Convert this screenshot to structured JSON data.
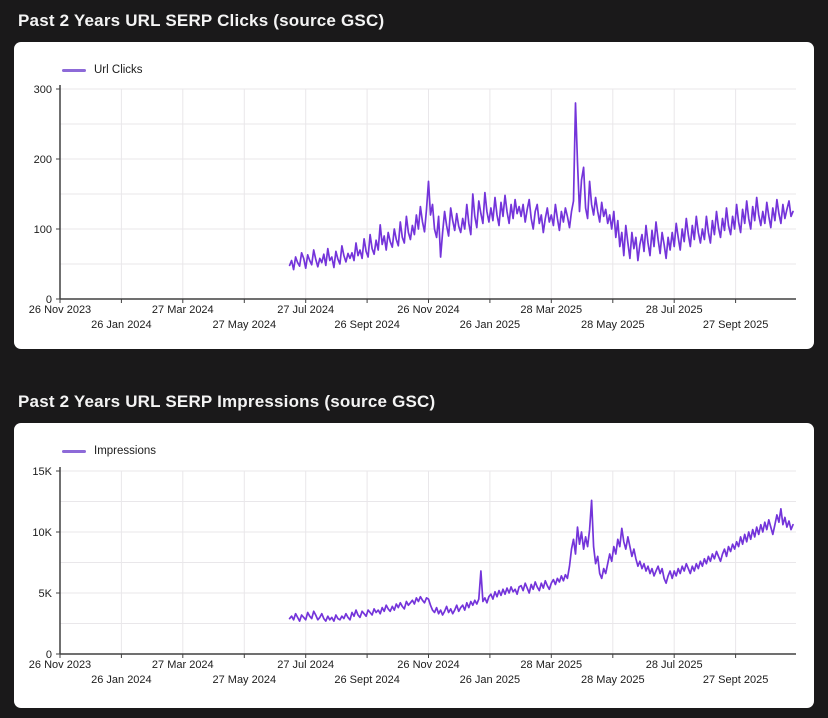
{
  "page": {
    "background": "#1a191a",
    "card_background": "#ffffff",
    "title_color": "#f4f4f4"
  },
  "chart_data": [
    {
      "type": "line",
      "title": "Past 2 Years URL SERP Clicks (source GSC)",
      "legend": "Url Clicks",
      "line_color": "#7434da",
      "legend_color": "#8d6ad8",
      "grid_color": "#e9e7ea",
      "axis_color": "#414141",
      "label_color": "#1c1c1c",
      "xlim": [
        0,
        731
      ],
      "ylim": [
        0,
        300
      ],
      "legend_position": "top-left",
      "grid": true,
      "y_gridlines": [
        50,
        100,
        150,
        200,
        250,
        300
      ],
      "y_ticks": [
        {
          "v": 0,
          "label": "0"
        },
        {
          "v": 100,
          "label": "100"
        },
        {
          "v": 200,
          "label": "200"
        },
        {
          "v": 300,
          "label": "300"
        }
      ],
      "x_ticks": [
        {
          "v": 0,
          "label": "26 Nov 2023",
          "row": 1
        },
        {
          "v": 61,
          "label": "26 Jan 2024",
          "row": 2
        },
        {
          "v": 122,
          "label": "27 Mar 2024",
          "row": 1
        },
        {
          "v": 183,
          "label": "27 May 2024",
          "row": 2
        },
        {
          "v": 244,
          "label": "27 Jul 2024",
          "row": 1
        },
        {
          "v": 305,
          "label": "26 Sept 2024",
          "row": 2
        },
        {
          "v": 366,
          "label": "26 Nov 2024",
          "row": 1
        },
        {
          "v": 427,
          "label": "26 Jan 2025",
          "row": 2
        },
        {
          "v": 488,
          "label": "28 Mar 2025",
          "row": 1
        },
        {
          "v": 549,
          "label": "28 May 2025",
          "row": 2
        },
        {
          "v": 610,
          "label": "28 Jul 2025",
          "row": 1
        },
        {
          "v": 671,
          "label": "27 Sept 2025",
          "row": 2
        }
      ],
      "series": [
        {
          "name": "Url Clicks",
          "x_start": 228,
          "x_step": 2,
          "values": [
            48,
            55,
            42,
            60,
            52,
            47,
            66,
            58,
            44,
            63,
            55,
            49,
            70,
            57,
            46,
            58,
            52,
            64,
            48,
            72,
            55,
            60,
            45,
            68,
            57,
            50,
            76,
            62,
            53,
            65,
            58,
            66,
            55,
            80,
            62,
            70,
            58,
            86,
            68,
            60,
            92,
            72,
            64,
            84,
            70,
            106,
            78,
            90,
            70,
            95,
            82,
            74,
            100,
            85,
            76,
            110,
            88,
            80,
            118,
            95,
            85,
            105,
            92,
            120,
            100,
            132,
            110,
            96,
            128,
            168,
            120,
            135,
            100,
            88,
            118,
            60,
            95,
            125,
            105,
            90,
            130,
            112,
            98,
            122,
            104,
            95,
            115,
            100,
            135,
            108,
            92,
            150,
            118,
            102,
            140,
            122,
            108,
            152,
            125,
            110,
            130,
            112,
            145,
            120,
            105,
            138,
            118,
            148,
            125,
            108,
            135,
            115,
            142,
            122,
            132,
            118,
            135,
            110,
            128,
            142,
            115,
            100,
            125,
            135,
            108,
            120,
            95,
            115,
            130,
            110,
            120,
            105,
            135,
            115,
            98,
            125,
            110,
            130,
            118,
            102,
            125,
            140,
            280,
            195,
            125,
            170,
            188,
            130,
            115,
            168,
            135,
            120,
            145,
            125,
            110,
            138,
            118,
            128,
            108,
            120,
            100,
            125,
            88,
            112,
            75,
            95,
            62,
            105,
            80,
            58,
            95,
            72,
            88,
            55,
            78,
            92,
            68,
            105,
            80,
            62,
            98,
            75,
            110,
            85,
            65,
            95,
            78,
            58,
            88,
            70,
            95,
            75,
            108,
            88,
            70,
            100,
            82,
            115,
            92,
            75,
            105,
            85,
            118,
            95,
            80,
            100,
            85,
            118,
            95,
            80,
            112,
            92,
            125,
            102,
            88,
            115,
            98,
            130,
            105,
            92,
            118,
            100,
            135,
            110,
            95,
            128,
            108,
            140,
            115,
            100,
            132,
            112,
            145,
            120,
            105,
            125,
            108,
            138,
            118,
            102,
            130,
            112,
            142,
            122,
            108,
            135,
            115,
            128,
            140,
            118,
            125
          ]
        }
      ]
    },
    {
      "type": "line",
      "title": "Past 2 Years URL SERP Impressions (source GSC)",
      "legend": "Impressions",
      "line_color": "#7434da",
      "legend_color": "#8d6ad8",
      "grid_color": "#e9e7ea",
      "axis_color": "#414141",
      "label_color": "#1c1c1c",
      "xlim": [
        0,
        731
      ],
      "ylim": [
        0,
        15
      ],
      "legend_position": "top-left",
      "grid": true,
      "y_unit": "K",
      "y_gridlines": [
        2.5,
        5,
        7.5,
        10,
        12.5,
        15
      ],
      "y_ticks": [
        {
          "v": 0,
          "label": "0"
        },
        {
          "v": 5,
          "label": "5K"
        },
        {
          "v": 10,
          "label": "10K"
        },
        {
          "v": 15,
          "label": "15K"
        }
      ],
      "x_ticks": [
        {
          "v": 0,
          "label": "26 Nov 2023",
          "row": 1
        },
        {
          "v": 61,
          "label": "26 Jan 2024",
          "row": 2
        },
        {
          "v": 122,
          "label": "27 Mar 2024",
          "row": 1
        },
        {
          "v": 183,
          "label": "27 May 2024",
          "row": 2
        },
        {
          "v": 244,
          "label": "27 Jul 2024",
          "row": 1
        },
        {
          "v": 305,
          "label": "26 Sept 2024",
          "row": 2
        },
        {
          "v": 366,
          "label": "26 Nov 2024",
          "row": 1
        },
        {
          "v": 427,
          "label": "26 Jan 2025",
          "row": 2
        },
        {
          "v": 488,
          "label": "28 Mar 2025",
          "row": 1
        },
        {
          "v": 549,
          "label": "28 May 2025",
          "row": 2
        },
        {
          "v": 610,
          "label": "28 Jul 2025",
          "row": 1
        },
        {
          "v": 671,
          "label": "27 Sept 2025",
          "row": 2
        }
      ],
      "series": [
        {
          "name": "Impressions",
          "x_start": 228,
          "x_step": 2,
          "values": [
            2.9,
            3.1,
            2.8,
            3.3,
            3.0,
            2.7,
            3.2,
            3.0,
            2.8,
            3.4,
            3.1,
            2.9,
            3.5,
            3.2,
            2.8,
            3.0,
            3.3,
            2.9,
            2.7,
            3.1,
            2.8,
            3.0,
            2.7,
            3.2,
            2.9,
            2.8,
            3.1,
            2.9,
            3.3,
            3.0,
            2.8,
            3.4,
            3.1,
            3.6,
            3.2,
            3.0,
            3.5,
            3.3,
            3.1,
            3.6,
            3.4,
            3.2,
            3.7,
            3.4,
            3.6,
            3.3,
            3.8,
            3.5,
            4.0,
            3.7,
            3.5,
            3.9,
            3.6,
            4.1,
            3.8,
            4.2,
            3.9,
            3.7,
            4.3,
            4.0,
            4.2,
            4.4,
            4.1,
            4.6,
            4.3,
            4.7,
            4.4,
            4.2,
            4.6,
            4.5,
            4.0,
            3.6,
            3.4,
            3.8,
            3.3,
            3.6,
            3.2,
            3.5,
            3.9,
            3.4,
            3.7,
            3.3,
            3.6,
            4.0,
            3.5,
            3.8,
            4.0,
            3.6,
            4.2,
            3.8,
            4.3,
            4.0,
            4.4,
            4.1,
            4.5,
            6.8,
            4.3,
            4.6,
            4.2,
            4.7,
            4.9,
            4.5,
            5.1,
            4.7,
            5.2,
            4.8,
            5.3,
            4.9,
            5.4,
            5.0,
            5.5,
            5.1,
            5.3,
            4.9,
            5.5,
            5.6,
            5.2,
            5.8,
            5.4,
            5.0,
            5.7,
            5.3,
            5.9,
            5.5,
            5.2,
            5.8,
            5.4,
            6.0,
            5.6,
            5.3,
            5.8,
            6.1,
            5.7,
            6.2,
            5.9,
            6.4,
            6.0,
            6.5,
            6.2,
            7.2,
            8.6,
            9.4,
            8.2,
            10.4,
            9.0,
            10.0,
            8.6,
            9.6,
            8.8,
            10.2,
            12.6,
            8.8,
            7.4,
            8.0,
            6.6,
            6.2,
            7.0,
            6.6,
            7.4,
            8.2,
            7.6,
            8.8,
            8.2,
            9.4,
            8.8,
            10.3,
            9.2,
            8.6,
            9.6,
            8.8,
            8.0,
            8.6,
            7.8,
            7.2,
            7.6,
            7.0,
            7.4,
            6.8,
            7.2,
            6.6,
            7.0,
            6.4,
            6.8,
            7.2,
            6.6,
            7.0,
            6.2,
            5.8,
            6.4,
            6.8,
            6.2,
            6.8,
            6.4,
            7.0,
            6.6,
            7.2,
            6.8,
            7.4,
            7.0,
            6.6,
            7.2,
            6.8,
            7.4,
            7.0,
            7.6,
            7.2,
            7.8,
            7.4,
            8.0,
            7.6,
            8.2,
            7.8,
            8.4,
            8.0,
            7.6,
            8.2,
            8.6,
            8.0,
            8.8,
            8.4,
            9.0,
            8.6,
            9.2,
            8.8,
            9.6,
            9.0,
            9.8,
            9.2,
            10.0,
            9.4,
            10.2,
            9.6,
            10.4,
            9.8,
            10.6,
            10.0,
            10.8,
            10.2,
            11.0,
            10.4,
            9.8,
            10.6,
            11.4,
            10.8,
            11.9,
            10.6,
            11.2,
            10.4,
            10.9,
            10.2,
            10.6
          ]
        }
      ]
    }
  ]
}
